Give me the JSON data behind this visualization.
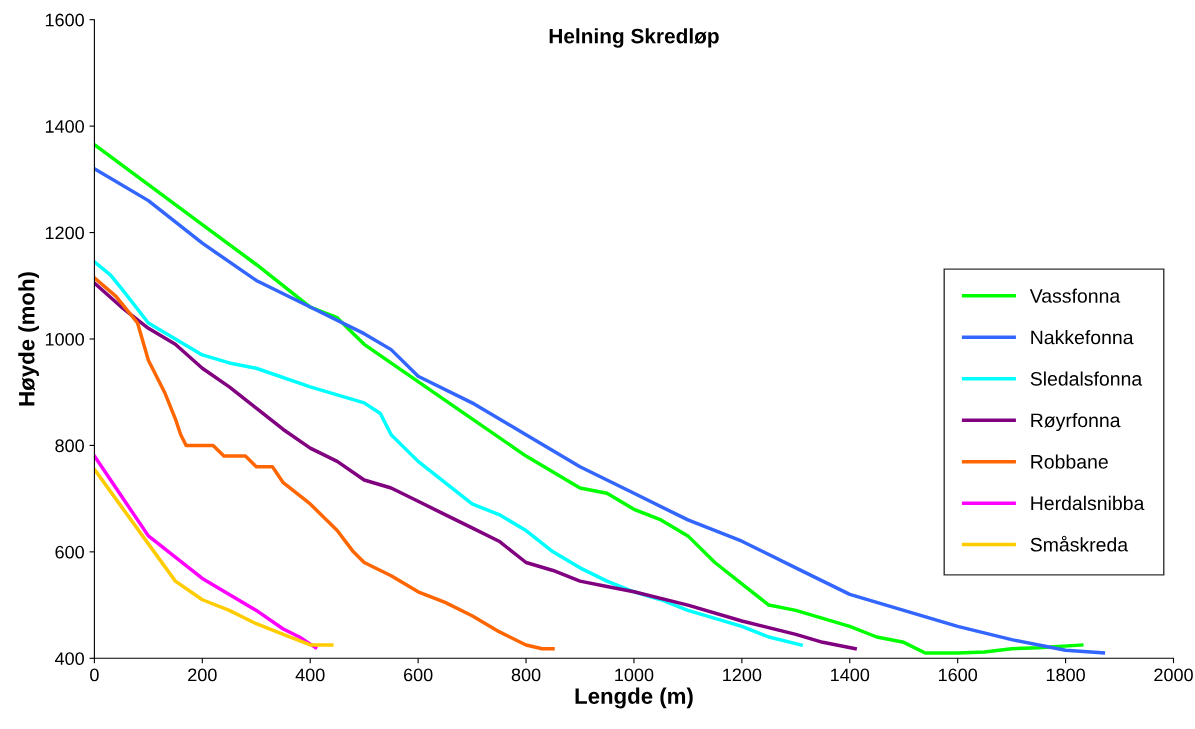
{
  "chart_data": {
    "type": "line",
    "title": "Helning Skredløp",
    "xlabel": "Lengde (m)",
    "ylabel": "Høyde (moh)",
    "xlim": [
      0,
      2000
    ],
    "xticks": [
      0,
      200,
      400,
      600,
      800,
      1000,
      1200,
      1400,
      1600,
      1800,
      2000
    ],
    "ylim": [
      400,
      1600
    ],
    "yticks": [
      400,
      600,
      800,
      1000,
      1200,
      1400,
      1600
    ],
    "grid": false,
    "legend": "right",
    "marker": "none",
    "line_style": "solid",
    "series": [
      {
        "name": "Vassfonna",
        "color": "#00ff00",
        "x": [
          0,
          100,
          200,
          300,
          400,
          450,
          480,
          500,
          600,
          700,
          800,
          900,
          950,
          1000,
          1050,
          1100,
          1150,
          1200,
          1250,
          1300,
          1400,
          1450,
          1500,
          1540,
          1600,
          1650,
          1700,
          1750,
          1830
        ],
        "values": [
          1365,
          1290,
          1215,
          1140,
          1060,
          1040,
          1010,
          990,
          920,
          850,
          780,
          720,
          710,
          680,
          660,
          630,
          580,
          540,
          500,
          490,
          460,
          440,
          430,
          410,
          410,
          412,
          418,
          420,
          425
        ]
      },
      {
        "name": "Nakkefonna",
        "color": "#3366ff",
        "x": [
          0,
          100,
          200,
          300,
          400,
          500,
          550,
          600,
          700,
          800,
          900,
          1000,
          1100,
          1200,
          1300,
          1400,
          1500,
          1600,
          1700,
          1800,
          1870
        ],
        "values": [
          1320,
          1260,
          1180,
          1110,
          1060,
          1010,
          980,
          930,
          880,
          820,
          760,
          710,
          660,
          620,
          570,
          520,
          490,
          460,
          435,
          415,
          410
        ]
      },
      {
        "name": "Sledalsfonna",
        "color": "#00ffff",
        "x": [
          0,
          30,
          50,
          100,
          150,
          200,
          250,
          300,
          400,
          450,
          500,
          530,
          550,
          600,
          650,
          700,
          750,
          800,
          850,
          900,
          950,
          1000,
          1050,
          1100,
          1200,
          1250,
          1310
        ],
        "values": [
          1145,
          1120,
          1095,
          1030,
          1000,
          970,
          955,
          945,
          910,
          895,
          880,
          860,
          820,
          770,
          730,
          690,
          670,
          640,
          600,
          570,
          545,
          525,
          510,
          490,
          460,
          440,
          425
        ]
      },
      {
        "name": "Røyrfonna",
        "color": "#800080",
        "x": [
          0,
          50,
          100,
          150,
          200,
          250,
          300,
          350,
          400,
          450,
          500,
          550,
          600,
          650,
          700,
          750,
          800,
          850,
          900,
          950,
          1000,
          1100,
          1200,
          1300,
          1350,
          1410
        ],
        "values": [
          1105,
          1060,
          1020,
          990,
          945,
          910,
          870,
          830,
          795,
          770,
          735,
          720,
          695,
          670,
          645,
          620,
          580,
          565,
          545,
          535,
          525,
          500,
          470,
          445,
          430,
          418
        ]
      },
      {
        "name": "Robbane",
        "color": "#ff6600",
        "x": [
          0,
          40,
          80,
          100,
          130,
          150,
          160,
          170,
          220,
          240,
          280,
          300,
          330,
          350,
          400,
          450,
          480,
          500,
          550,
          600,
          650,
          700,
          750,
          800,
          830,
          850
        ],
        "values": [
          1115,
          1080,
          1030,
          960,
          900,
          850,
          820,
          800,
          800,
          780,
          780,
          760,
          760,
          730,
          690,
          640,
          600,
          580,
          555,
          525,
          505,
          480,
          450,
          425,
          418,
          418
        ]
      },
      {
        "name": "Herdalsnibba",
        "color": "#ff00ff",
        "x": [
          0,
          50,
          100,
          150,
          200,
          250,
          300,
          350,
          380,
          410
        ],
        "values": [
          780,
          705,
          630,
          590,
          550,
          520,
          490,
          455,
          440,
          420
        ]
      },
      {
        "name": "Småskreda",
        "color": "#ffcc00",
        "x": [
          0,
          50,
          100,
          150,
          200,
          250,
          300,
          350,
          400,
          440
        ],
        "values": [
          755,
          685,
          615,
          545,
          510,
          490,
          465,
          445,
          425,
          425
        ]
      }
    ]
  }
}
